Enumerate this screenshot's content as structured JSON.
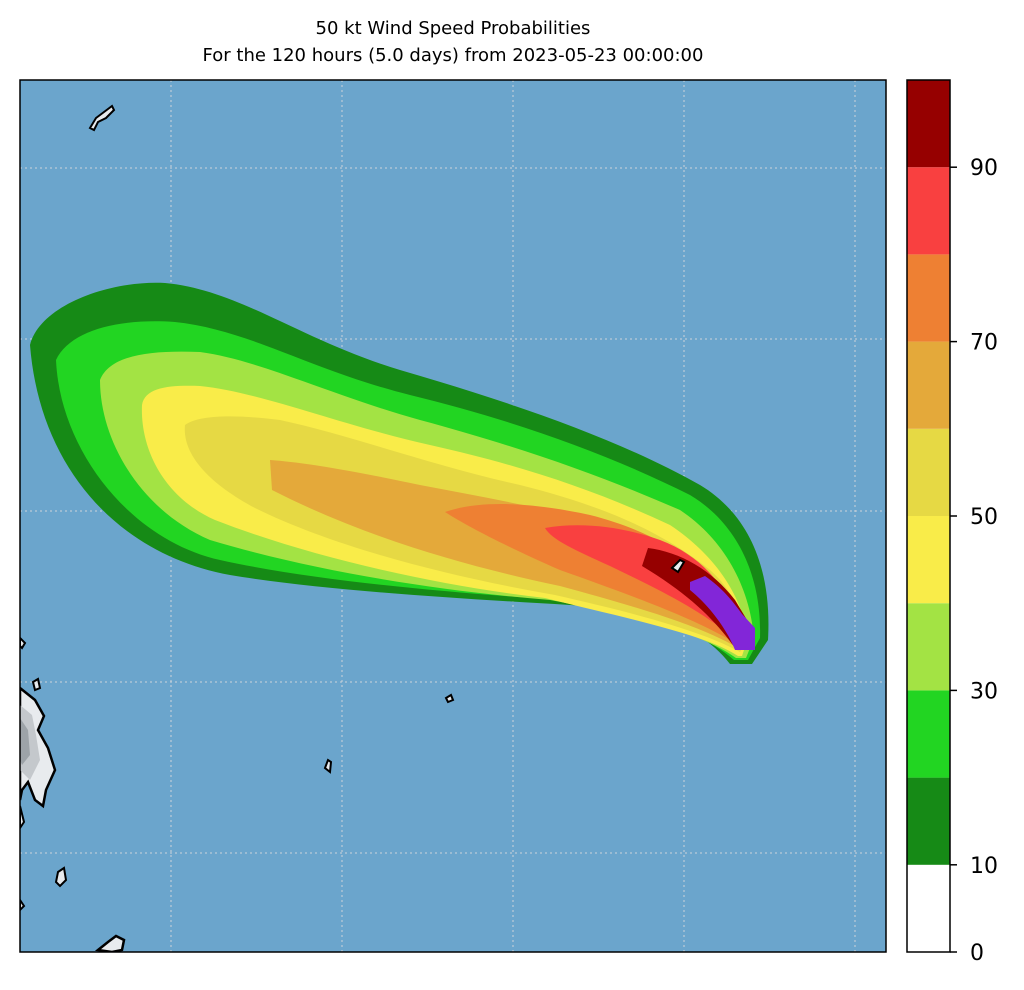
{
  "title": {
    "line1": "50 kt Wind Speed Probabilities",
    "line2": "For the 120 hours (5.0 days) from 2023-05-23 00:00:00"
  },
  "colors": {
    "ocean": "#6ba5cc",
    "land": "#ffffff",
    "coastline": "#000000",
    "grid": "#dddddd"
  },
  "colorbar": {
    "levels": [
      0,
      10,
      20,
      30,
      40,
      50,
      60,
      70,
      80,
      90,
      100
    ],
    "colors": [
      "#ffffff",
      "#168a16",
      "#22d522",
      "#a3e344",
      "#f9ec49",
      "#e6d944",
      "#e4a93a",
      "#ee8033",
      "#f94040",
      "#960000",
      "#8226d8"
    ],
    "tick_labels": [
      "0",
      "10",
      "30",
      "50",
      "70",
      "90"
    ]
  },
  "chart_data": {
    "type": "heatmap",
    "title": "50 kt Wind Speed Probabilities",
    "subtitle": "For the 120 hours (5.0 days) from 2023-05-23 00:00:00",
    "variable": "50 kt wind speed probability (%)",
    "value_range": [
      0,
      100
    ],
    "contour_levels": [
      0,
      10,
      20,
      30,
      40,
      50,
      60,
      70,
      80,
      90,
      100
    ],
    "peak_band": "90-100",
    "grid": true,
    "colorbar_position": "right"
  }
}
